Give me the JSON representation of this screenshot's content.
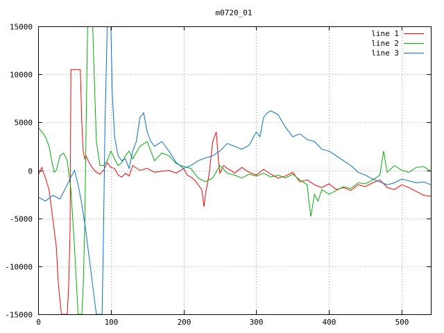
{
  "chart_data": {
    "type": "line",
    "title": "m0720_01",
    "xlim": [
      0,
      540
    ],
    "ylim": [
      -15000,
      15000
    ],
    "xticks": [
      0,
      100,
      200,
      300,
      400,
      500
    ],
    "yticks": [
      -15000,
      -10000,
      -5000,
      0,
      5000,
      10000,
      15000
    ],
    "grid": true,
    "legend_position": "top-right",
    "series": [
      {
        "name": "line 1",
        "color": "#ff0000",
        "x": [
          0,
          5,
          10,
          15,
          20,
          25,
          28,
          32,
          36,
          40,
          42,
          44,
          45,
          50,
          55,
          58,
          60,
          62,
          64,
          66,
          70,
          75,
          80,
          85,
          90,
          95,
          100,
          105,
          110,
          115,
          120,
          125,
          130,
          140,
          150,
          160,
          170,
          180,
          190,
          200,
          205,
          210,
          215,
          220,
          225,
          228,
          230,
          235,
          240,
          245,
          248,
          250,
          255,
          260,
          265,
          270,
          280,
          290,
          300,
          310,
          320,
          330,
          340,
          350,
          360,
          370,
          380,
          390,
          400,
          410,
          420,
          430,
          440,
          450,
          460,
          470,
          480,
          490,
          500,
          510,
          520,
          530,
          540
        ],
        "y": [
          -500,
          300,
          -800,
          -2000,
          -5000,
          -8000,
          -12000,
          -15000,
          -15000,
          -15000,
          -12000,
          -6000,
          10500,
          10500,
          10500,
          10500,
          5000,
          2000,
          1200,
          1500,
          800,
          200,
          -200,
          -400,
          0,
          800,
          300,
          200,
          -500,
          -700,
          -300,
          -600,
          500,
          0,
          200,
          -200,
          -100,
          0,
          -300,
          200,
          -500,
          -700,
          -1000,
          -1500,
          -2000,
          -3800,
          -2500,
          -500,
          3000,
          4000,
          1000,
          -300,
          500,
          200,
          0,
          -300,
          300,
          -200,
          -500,
          100,
          -400,
          -800,
          -600,
          -200,
          -1200,
          -1000,
          -1500,
          -1800,
          -1400,
          -2000,
          -1800,
          -2100,
          -1500,
          -1700,
          -1300,
          -1000,
          -1800,
          -2000,
          -1500,
          -1800,
          -2200,
          -2600,
          -2700
        ]
      },
      {
        "name": "line 2",
        "color": "#00b000",
        "x": [
          0,
          5,
          10,
          15,
          20,
          22,
          25,
          30,
          35,
          40,
          45,
          50,
          55,
          60,
          62,
          64,
          66,
          68,
          70,
          75,
          80,
          85,
          90,
          95,
          100,
          105,
          110,
          115,
          120,
          125,
          130,
          140,
          150,
          160,
          170,
          180,
          190,
          200,
          210,
          220,
          230,
          240,
          250,
          260,
          270,
          280,
          290,
          300,
          310,
          320,
          330,
          340,
          350,
          360,
          370,
          372,
          375,
          380,
          385,
          390,
          400,
          410,
          420,
          430,
          440,
          450,
          460,
          470,
          475,
          480,
          490,
          500,
          510,
          520,
          530,
          540
        ],
        "y": [
          4500,
          4000,
          3500,
          2500,
          500,
          -200,
          0,
          1500,
          1800,
          1000,
          -2000,
          -8000,
          -15000,
          -15000,
          -12000,
          -6000,
          5000,
          15000,
          15000,
          15000,
          3000,
          500,
          500,
          1000,
          2000,
          1200,
          500,
          800,
          1500,
          2000,
          1200,
          2500,
          3000,
          1000,
          1800,
          1500,
          700,
          400,
          200,
          -800,
          -1200,
          -800,
          500,
          -300,
          -500,
          -800,
          -400,
          -600,
          -300,
          -700,
          -500,
          -800,
          -400,
          -1000,
          -1500,
          -3000,
          -4800,
          -2500,
          -3200,
          -2000,
          -2500,
          -2100,
          -1700,
          -1900,
          -1300,
          -1400,
          -1000,
          -500,
          2000,
          -200,
          500,
          0,
          -200,
          300,
          400,
          -100
        ]
      },
      {
        "name": "line 3",
        "color": "#0070d0",
        "x": [
          0,
          10,
          20,
          30,
          40,
          45,
          50,
          55,
          60,
          65,
          70,
          75,
          80,
          85,
          88,
          90,
          92,
          95,
          98,
          100,
          102,
          105,
          110,
          115,
          120,
          125,
          130,
          135,
          140,
          145,
          150,
          155,
          160,
          170,
          180,
          190,
          200,
          210,
          220,
          230,
          240,
          250,
          260,
          270,
          280,
          290,
          300,
          305,
          310,
          315,
          320,
          325,
          330,
          340,
          350,
          360,
          370,
          380,
          390,
          400,
          410,
          420,
          430,
          440,
          450,
          460,
          470,
          480,
          490,
          500,
          510,
          520,
          530,
          540
        ],
        "y": [
          -2800,
          -3200,
          -2600,
          -3000,
          -1500,
          -700,
          0,
          -1500,
          -3500,
          -6000,
          -9000,
          -12000,
          -15000,
          -15000,
          -15000,
          -6000,
          5000,
          15000,
          15000,
          15000,
          8000,
          3500,
          1500,
          1000,
          1200,
          200,
          2000,
          3000,
          5500,
          6000,
          4000,
          3000,
          2500,
          3000,
          2000,
          800,
          200,
          500,
          1000,
          1300,
          1500,
          2000,
          2800,
          2500,
          2200,
          2600,
          4000,
          3500,
          5500,
          6000,
          6200,
          6000,
          5800,
          4500,
          3500,
          3800,
          3200,
          3000,
          2200,
          2000,
          1500,
          1000,
          500,
          -200,
          -500,
          -900,
          -1200,
          -1500,
          -1300,
          -900,
          -1100,
          -1300,
          -1200,
          -1500
        ]
      }
    ]
  }
}
